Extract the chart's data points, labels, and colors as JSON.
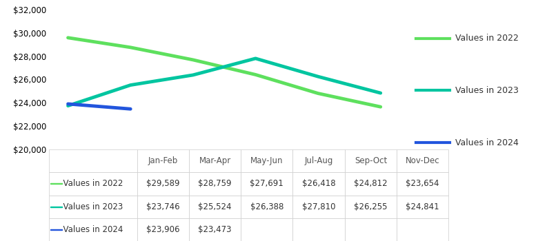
{
  "x_labels": [
    "Jan-Feb",
    "Mar-Apr",
    "May-Jun",
    "Jul-Aug",
    "Sep-Oct",
    "Nov-Dec"
  ],
  "series": [
    {
      "label": "Values in 2022",
      "color": "#5EE05E",
      "values": [
        29589,
        28759,
        27691,
        26418,
        24812,
        23654
      ]
    },
    {
      "label": "Values in 2023",
      "color": "#00C5A0",
      "values": [
        23746,
        25524,
        26388,
        27810,
        26255,
        24841
      ]
    },
    {
      "label": "Values in 2024",
      "color": "#2255DD",
      "values": [
        23906,
        23473,
        null,
        null,
        null,
        null
      ]
    }
  ],
  "ylim": [
    20000,
    32000
  ],
  "yticks": [
    20000,
    22000,
    24000,
    26000,
    28000,
    30000,
    32000
  ],
  "linewidth": 3.5,
  "background_color": "#ffffff"
}
